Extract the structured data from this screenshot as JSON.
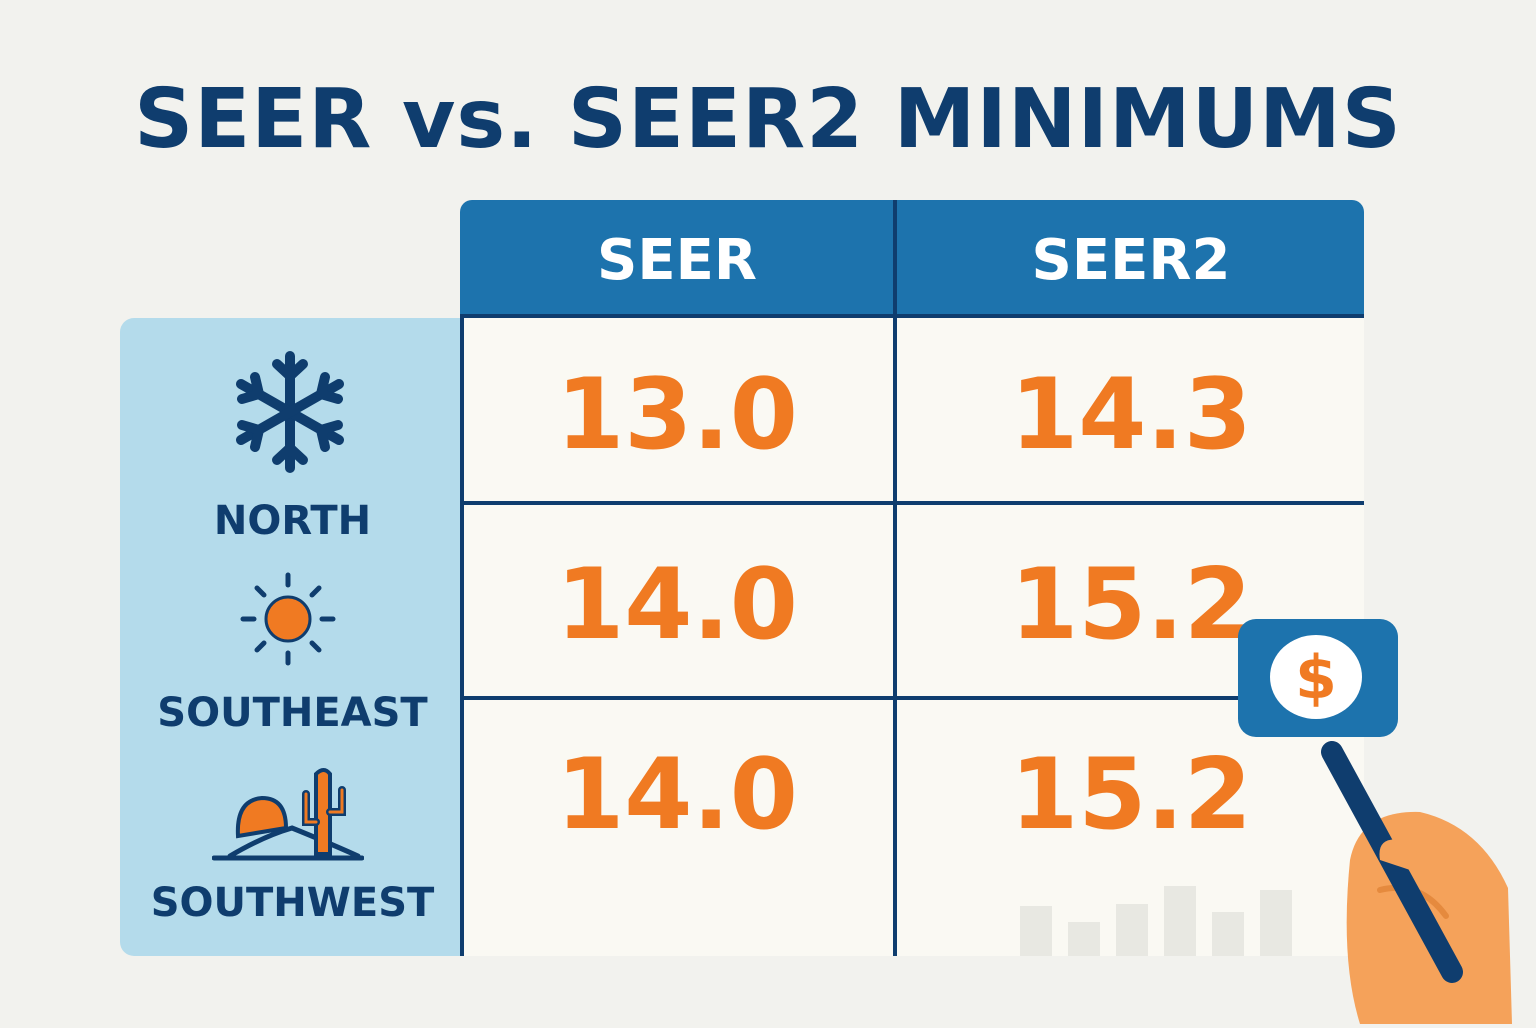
{
  "title": "SEER vs. SEER2 MINIMUMS",
  "columns": [
    "SEER",
    "SEER2"
  ],
  "regions": [
    {
      "name": "NORTH",
      "icon": "snowflake-icon"
    },
    {
      "name": "SOUTHEAST",
      "icon": "sun-icon"
    },
    {
      "name": "SOUTHWEST",
      "icon": "desert-cactus-icon"
    }
  ],
  "rows": [
    {
      "seer": "13.0",
      "seer2": "14.3"
    },
    {
      "seer": "14.0",
      "seer2": "15.2"
    },
    {
      "seer": "14.0",
      "seer2": "15.2"
    }
  ],
  "badge": {
    "symbol": "$",
    "icon": "dollar-icon"
  },
  "decorations": {
    "hand": "hand-pen-icon",
    "bars": "bar-chart-icon"
  },
  "colors": {
    "navy": "#0f3d6e",
    "header_blue": "#1d73ad",
    "panel_blue": "#b4dbeb",
    "value_orange": "#f07a22",
    "cell_bg": "#faf9f3",
    "page_bg": "#f2f2ee"
  }
}
